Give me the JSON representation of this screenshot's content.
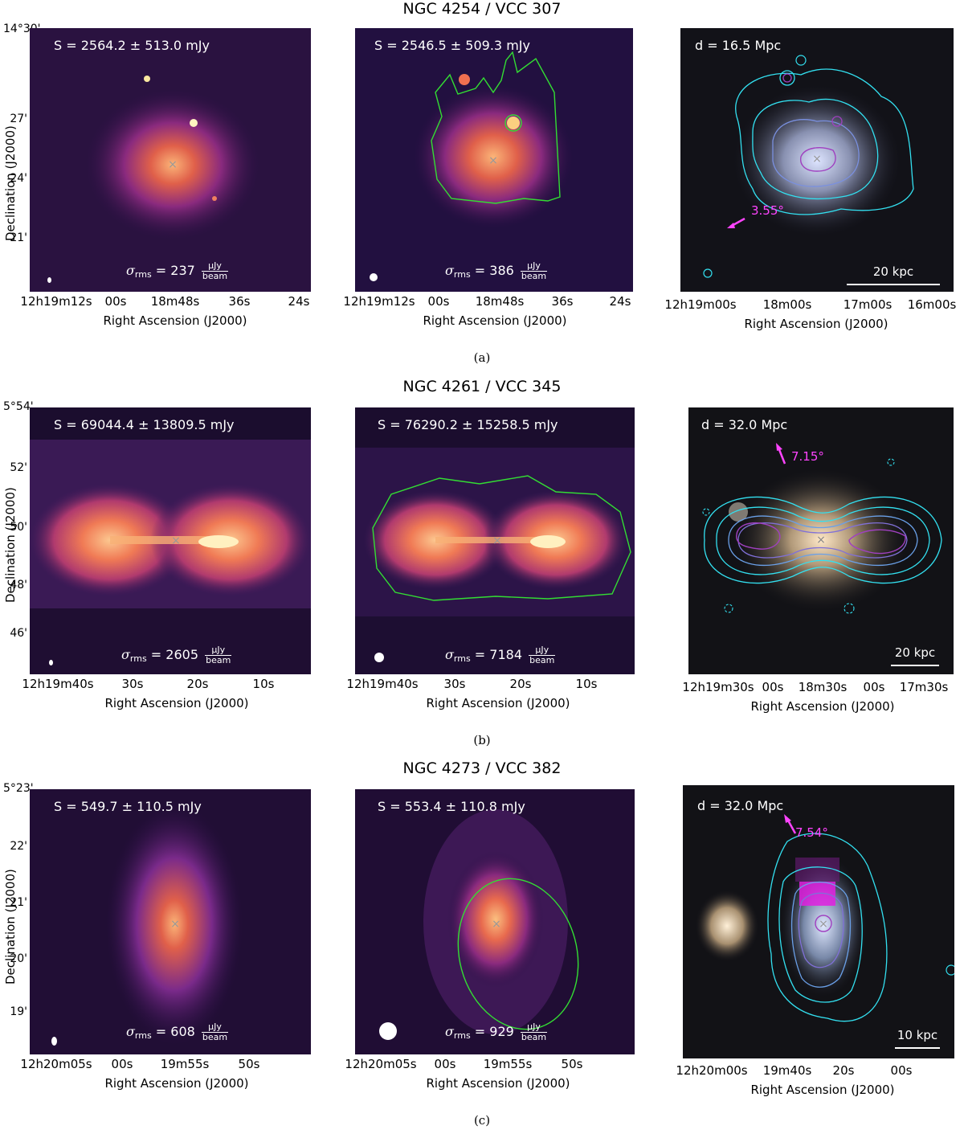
{
  "rows": [
    {
      "title": "NGC 4254 / VCC 307",
      "caption": "(a)",
      "ylabel": "Declination (J2000)",
      "yticks": [
        "14°30'",
        "27'",
        "24'",
        "21'"
      ],
      "panel1": {
        "flux": "S = 2564.2 ± 513.0 mJy",
        "rms_value": "= 237",
        "xticks": [
          "12h19m12s",
          "00s",
          "18m48s",
          "36s",
          "24s"
        ]
      },
      "panel2": {
        "flux": "S = 2546.5 ± 509.3 mJy",
        "rms_value": "= 386",
        "xticks": [
          "12h19m12s",
          "00s",
          "18m48s",
          "36s",
          "24s"
        ]
      },
      "panel3": {
        "distance": "d = 16.5 Mpc",
        "angle": "3.55°",
        "scalebar": "20 kpc",
        "xticks": [
          "12h19m00s",
          "18m00s",
          "17m00s",
          "16m00s"
        ]
      }
    },
    {
      "title": "NGC 4261 / VCC 345",
      "caption": "(b)",
      "ylabel": "Declination (J2000)",
      "yticks": [
        "5°54'",
        "52'",
        "50'",
        "48'",
        "46'"
      ],
      "panel1": {
        "flux": "S = 69044.4 ± 13809.5 mJy",
        "rms_value": "= 2605",
        "xticks": [
          "12h19m40s",
          "30s",
          "20s",
          "10s"
        ]
      },
      "panel2": {
        "flux": "S = 76290.2 ± 15258.5 mJy",
        "rms_value": "= 7184",
        "xticks": [
          "12h19m40s",
          "30s",
          "20s",
          "10s"
        ]
      },
      "panel3": {
        "distance": "d = 32.0 Mpc",
        "angle": "7.15°",
        "scalebar": "20 kpc",
        "xticks": [
          "12h19m30s",
          "00s",
          "18m30s",
          "00s",
          "17m30s"
        ]
      }
    },
    {
      "title": "NGC 4273 / VCC 382",
      "caption": "(c)",
      "ylabel": "Declination (J2000)",
      "yticks": [
        "5°23'",
        "22'",
        "21'",
        "20'",
        "19'"
      ],
      "panel1": {
        "flux": "S = 549.7 ± 110.5 mJy",
        "rms_value": "= 608",
        "xticks": [
          "12h20m05s",
          "00s",
          "19m55s",
          "50s"
        ]
      },
      "panel2": {
        "flux": "S = 553.4 ± 110.8 mJy",
        "rms_value": "= 929",
        "xticks": [
          "12h20m05s",
          "00s",
          "19m55s",
          "50s"
        ]
      },
      "panel3": {
        "distance": "d = 32.0 Mpc",
        "angle": "7.54°",
        "scalebar": "10 kpc",
        "xticks": [
          "12h20m00s",
          "19m40s",
          "20s",
          "00s"
        ]
      }
    }
  ],
  "common": {
    "xlabel": "Right Ascension (J2000)",
    "rms_symbol": "σ",
    "rms_sub": "rms",
    "unit_num": "μJy",
    "unit_den": "beam"
  },
  "colors": {
    "radio_dark": "#160b2e",
    "radio_mid": "#7a2a8a",
    "radio_bright": "#f6a86a",
    "mask_outline": "#33dd33",
    "contour_outer": "#33e0f0",
    "contour_inner": "#a040c0",
    "angle_arrow": "#ff44ff"
  }
}
